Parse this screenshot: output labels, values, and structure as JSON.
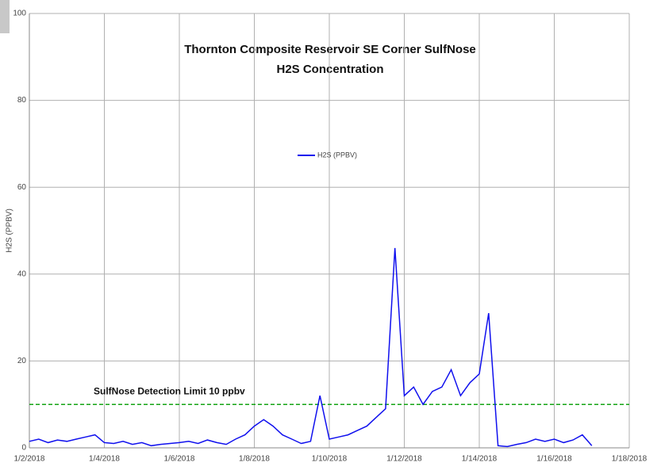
{
  "chart_data": {
    "type": "line",
    "title": "Thornton Composite Reservoir SE Corner SulfNose",
    "subtitle": "H2S Concentration",
    "y_label": "H2S (PPBV)",
    "x": [
      43102,
      43102.25,
      43102.5,
      43102.75,
      43103,
      43103.25,
      43103.5,
      43103.75,
      43104,
      43104.25,
      43104.5,
      43104.75,
      43105,
      43105.25,
      43105.5,
      43105.75,
      43106,
      43106.25,
      43106.5,
      43106.75,
      43107,
      43107.25,
      43107.5,
      43107.75,
      43108,
      43108.25,
      43108.5,
      43108.75,
      43109,
      43109.25,
      43109.5,
      43109.75,
      43110,
      43110.25,
      43110.5,
      43110.75,
      43111,
      43111.25,
      43111.5,
      43111.75,
      43112,
      43112.25,
      43112.5,
      43112.75,
      43113,
      43113.25,
      43113.5,
      43113.75,
      43114,
      43114.25,
      43114.5,
      43114.75,
      43115,
      43115.25,
      43115.5,
      43115.75,
      43116,
      43116.25,
      43116.5,
      43116.75,
      43117
    ],
    "series": [
      {
        "name": "H2S (PPBV)",
        "color": "#1010ee",
        "values": [
          1.5,
          2,
          1.2,
          1.8,
          1.5,
          2,
          2.5,
          3,
          1.2,
          1,
          1.5,
          0.8,
          1.2,
          0.5,
          0.8,
          1,
          1.2,
          1.5,
          1,
          1.8,
          1.2,
          0.8,
          2,
          3,
          5,
          6.5,
          5,
          3,
          2,
          1,
          1.5,
          12,
          2,
          2.5,
          3,
          4,
          5,
          7,
          9,
          46,
          12,
          14,
          10,
          13,
          14,
          18,
          12,
          15,
          17,
          31,
          0.5,
          0.3,
          0.8,
          1.2,
          2,
          1.5,
          2,
          1.2,
          1.8,
          3,
          0.5
        ]
      }
    ],
    "reference_line": {
      "value": 10,
      "label": "SulfNose Detection Limit 10 ppbv",
      "color": "#13a313"
    },
    "xlim": [
      43102,
      43118
    ],
    "xticks": [
      {
        "value": 43102,
        "label": "1/2/2018"
      },
      {
        "value": 43104,
        "label": "1/4/2018"
      },
      {
        "value": 43106,
        "label": "1/6/2018"
      },
      {
        "value": 43108,
        "label": "1/8/2018"
      },
      {
        "value": 43110,
        "label": "1/10/2018"
      },
      {
        "value": 43112,
        "label": "1/12/2018"
      },
      {
        "value": 43114,
        "label": "1/14/2018"
      },
      {
        "value": 43116,
        "label": "1/16/2018"
      },
      {
        "value": 43118,
        "label": "1/18/2018"
      }
    ],
    "ylim": [
      0,
      100
    ],
    "yticks": [
      0,
      20,
      40,
      60,
      80,
      100
    ],
    "grid": true
  }
}
